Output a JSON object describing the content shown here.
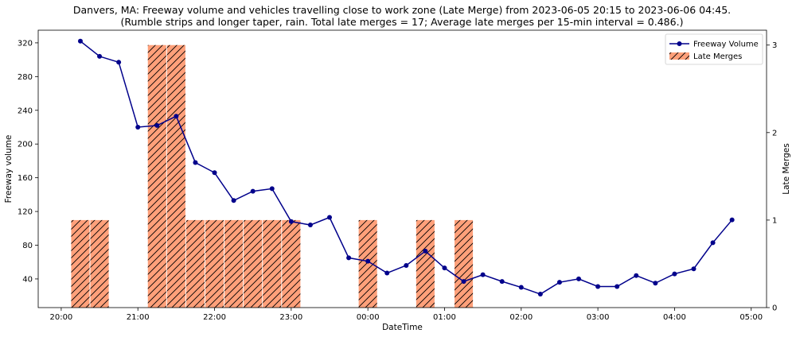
{
  "chart_data": {
    "type": "bar+line",
    "title_line1": "Danvers, MA: Freeway volume and vehicles travelling close to work zone (Late Merge) from 2023-06-05 20:15 to 2023-06-06 04:45.",
    "title_line2": "(Rumble strips and longer taper, rain. Total late merges = 17; Average late merges per 15-min interval = 0.486.)",
    "xlabel": "DateTime",
    "ylabel_left": "Freeway volume",
    "ylabel_right": "Late Merges",
    "x_ticks": [
      "20:00",
      "21:00",
      "22:00",
      "23:00",
      "00:00",
      "01:00",
      "02:00",
      "03:00",
      "04:00",
      "05:00"
    ],
    "y_left_ticks": [
      40,
      80,
      120,
      160,
      200,
      240,
      280,
      320
    ],
    "y_right_ticks": [
      0,
      1,
      2,
      3
    ],
    "y_left_lim": [
      6,
      335
    ],
    "y_right_lim": [
      0,
      3.17
    ],
    "x_range_hours": [
      -0.3,
      9.2
    ],
    "legend": [
      {
        "label": "Freeway Volume",
        "kind": "line"
      },
      {
        "label": "Late Merges",
        "kind": "bar"
      }
    ],
    "legend_position": "top-right",
    "colors": {
      "volume_line": "#00008B",
      "bar_fill": "#FFA07A",
      "bar_hatch": "#000000"
    },
    "volume_series": {
      "name": "Freeway Volume",
      "x": [
        "20:15",
        "20:30",
        "20:45",
        "21:00",
        "21:15",
        "21:30",
        "21:45",
        "22:00",
        "22:15",
        "22:30",
        "22:45",
        "23:00",
        "23:15",
        "23:30",
        "23:45",
        "00:00",
        "00:15",
        "00:30",
        "00:45",
        "01:00",
        "01:15",
        "01:30",
        "01:45",
        "02:00",
        "02:15",
        "02:30",
        "02:45",
        "03:00",
        "03:15",
        "03:30",
        "03:45",
        "04:00",
        "04:15",
        "04:30",
        "04:45"
      ],
      "hours": [
        0.25,
        0.5,
        0.75,
        1.0,
        1.25,
        1.5,
        1.75,
        2.0,
        2.25,
        2.5,
        2.75,
        3.0,
        3.25,
        3.5,
        3.75,
        4.0,
        4.25,
        4.5,
        4.75,
        5.0,
        5.25,
        5.5,
        5.75,
        6.0,
        6.25,
        6.5,
        6.75,
        7.0,
        7.25,
        7.5,
        7.75,
        8.0,
        8.25,
        8.5,
        8.75
      ],
      "values": [
        322,
        304,
        297,
        220,
        222,
        233,
        178,
        166,
        133,
        144,
        147,
        108,
        104,
        113,
        65,
        61,
        47,
        56,
        73,
        53,
        37,
        45,
        37,
        30,
        22,
        36,
        40,
        31,
        31,
        44,
        35,
        46,
        52,
        83,
        110
      ]
    },
    "late_merges_series": {
      "name": "Late Merges",
      "x": [
        "20:15",
        "20:30",
        "20:45",
        "21:00",
        "21:15",
        "21:30",
        "21:45",
        "22:00",
        "22:15",
        "22:30",
        "22:45",
        "23:00",
        "23:15",
        "23:30",
        "23:45",
        "00:00",
        "00:15",
        "00:30",
        "00:45",
        "01:00",
        "01:15",
        "01:30",
        "01:45",
        "02:00",
        "02:15",
        "02:30",
        "02:45",
        "03:00",
        "03:15",
        "03:30",
        "03:45",
        "04:00",
        "04:15",
        "04:30",
        "04:45"
      ],
      "hours": [
        0.25,
        0.5,
        0.75,
        1.0,
        1.25,
        1.5,
        1.75,
        2.0,
        2.25,
        2.5,
        2.75,
        3.0,
        3.25,
        3.5,
        3.75,
        4.0,
        4.25,
        4.5,
        4.75,
        5.0,
        5.25,
        5.5,
        5.75,
        6.0,
        6.25,
        6.5,
        6.75,
        7.0,
        7.25,
        7.5,
        7.75,
        8.0,
        8.25,
        8.5,
        8.75
      ],
      "values": [
        1,
        1,
        0,
        0,
        3,
        3,
        1,
        1,
        1,
        1,
        1,
        1,
        0,
        0,
        0,
        1,
        0,
        0,
        1,
        0,
        1,
        0,
        0,
        0,
        0,
        0,
        0,
        0,
        0,
        0,
        0,
        0,
        0,
        0,
        0
      ]
    }
  }
}
